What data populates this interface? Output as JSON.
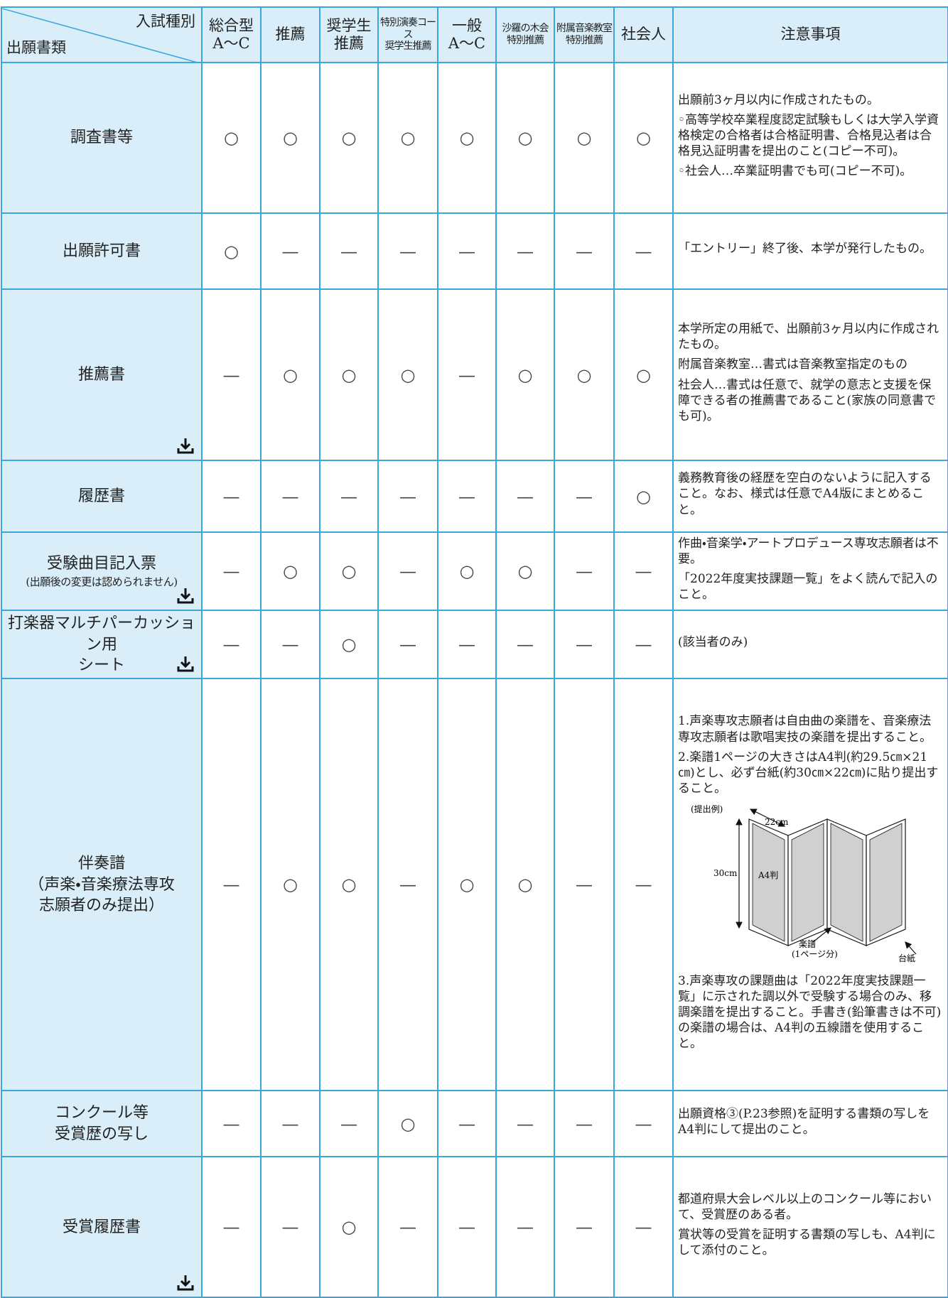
{
  "header": {
    "corner_top": "入試種別",
    "corner_bottom": "出願書類",
    "columns": [
      [
        "総合型",
        "A～C"
      ],
      [
        "推薦"
      ],
      [
        "奨学生",
        "推薦"
      ],
      [
        "特別演奏コース",
        "奨学生推薦"
      ],
      [
        "一般",
        "A～C"
      ],
      [
        "沙羅の木会",
        "特別推薦"
      ],
      [
        "附属音楽教室",
        "特別推薦"
      ],
      [
        "社会人"
      ]
    ],
    "notes": "注意事項"
  },
  "rows": [
    {
      "label": [
        "調査書等"
      ],
      "marks": [
        "○",
        "○",
        "○",
        "○",
        "○",
        "○",
        "○",
        "○"
      ],
      "notes": [
        "出願前3ヶ月以内に作成されたもの。",
        "◦高等学校卒業程度認定試験もしくは大学入学資格検定の合格者は合格証明書、合格見込者は合格見込証明書を提出のこと(コピー不可)。",
        "◦社会人…卒業証明書でも可(コピー不可)。"
      ]
    },
    {
      "label": [
        "出願許可書"
      ],
      "marks": [
        "○",
        "—",
        "—",
        "—",
        "—",
        "—",
        "—",
        "—"
      ],
      "notes": [
        "「エントリー」終了後、本学が発行したもの。"
      ]
    },
    {
      "label": [
        "推薦書"
      ],
      "marks": [
        "—",
        "○",
        "○",
        "○",
        "—",
        "○",
        "○",
        "○"
      ],
      "notes": [
        "本学所定の用紙で、出願前3ヶ月以内に作成されたもの。",
        "附属音楽教室…書式は音楽教室指定のもの",
        "社会人…書式は任意で、就学の意志と支援を保障できる者の推薦書であること(家族の同意書でも可)。"
      ]
    },
    {
      "label": [
        "履歴書"
      ],
      "marks": [
        "—",
        "—",
        "—",
        "—",
        "—",
        "—",
        "—",
        "○"
      ],
      "notes": [
        "義務教育後の経歴を空白のないように記入すること。なお、様式は任意でA4版にまとめること。"
      ]
    },
    {
      "label": [
        "受験曲目記入票",
        "(出願後の変更は認められません)"
      ],
      "marks": [
        "—",
        "○",
        "○",
        "—",
        "○",
        "○",
        "—",
        "—"
      ],
      "notes": [
        "作曲・音楽学・アートプロデュース専攻志願者は不要。",
        "「2022年度実技課題一覧」をよく読んで記入のこと。"
      ]
    },
    {
      "label": [
        "打楽器マルチパーカッション用",
        "シート"
      ],
      "marks": [
        "—",
        "—",
        "○",
        "—",
        "—",
        "—",
        "—",
        "—"
      ],
      "notes": [
        "(該当者のみ)"
      ]
    },
    {
      "label": [
        "伴奏譜",
        "（声楽・音楽療法専攻",
        "志願者のみ提出）"
      ],
      "marks": [
        "—",
        "○",
        "○",
        "—",
        "○",
        "○",
        "—",
        "—"
      ],
      "notes": [
        "1.声楽専攻志願者は自由曲の楽譜を、音楽療法専攻志願者は歌唱実技の楽譜を提出すること。",
        "2.楽譜1ページの大きさはA4判(約29.5㎝×21㎝)とし、必ず台紙(約30㎝×22㎝)に貼り提出すること。"
      ],
      "figure": {
        "example": "(提出例)",
        "width": "22cm",
        "height": "30cm",
        "size": "A4判",
        "score": "楽譜",
        "score_note": "(1ページ分)",
        "board": "台紙"
      },
      "notes_after": [
        "3.声楽専攻の課題曲は「2022年度実技課題一覧」に示された調以外で受験する場合のみ、移調楽譜を提出すること。手書き(鉛筆書きは不可)の楽譜の場合は、A4判の五線譜を使用すること。"
      ]
    },
    {
      "label": [
        "コンクール等",
        "受賞歴の写し"
      ],
      "marks": [
        "—",
        "—",
        "—",
        "○",
        "—",
        "—",
        "—",
        "—"
      ],
      "notes": [
        "出願資格③(P.23参照)を証明する書類の写しをA4判にして提出のこと。"
      ]
    },
    {
      "label": [
        "受賞履歴書"
      ],
      "marks": [
        "—",
        "—",
        "○",
        "—",
        "—",
        "—",
        "—",
        "—"
      ],
      "notes": [
        "都道府県大会レベル以上のコンクール等において、受賞歴のある者。",
        "賞状等の受賞を証明する書類の写しも、A4判にして添付のこと。"
      ]
    }
  ]
}
